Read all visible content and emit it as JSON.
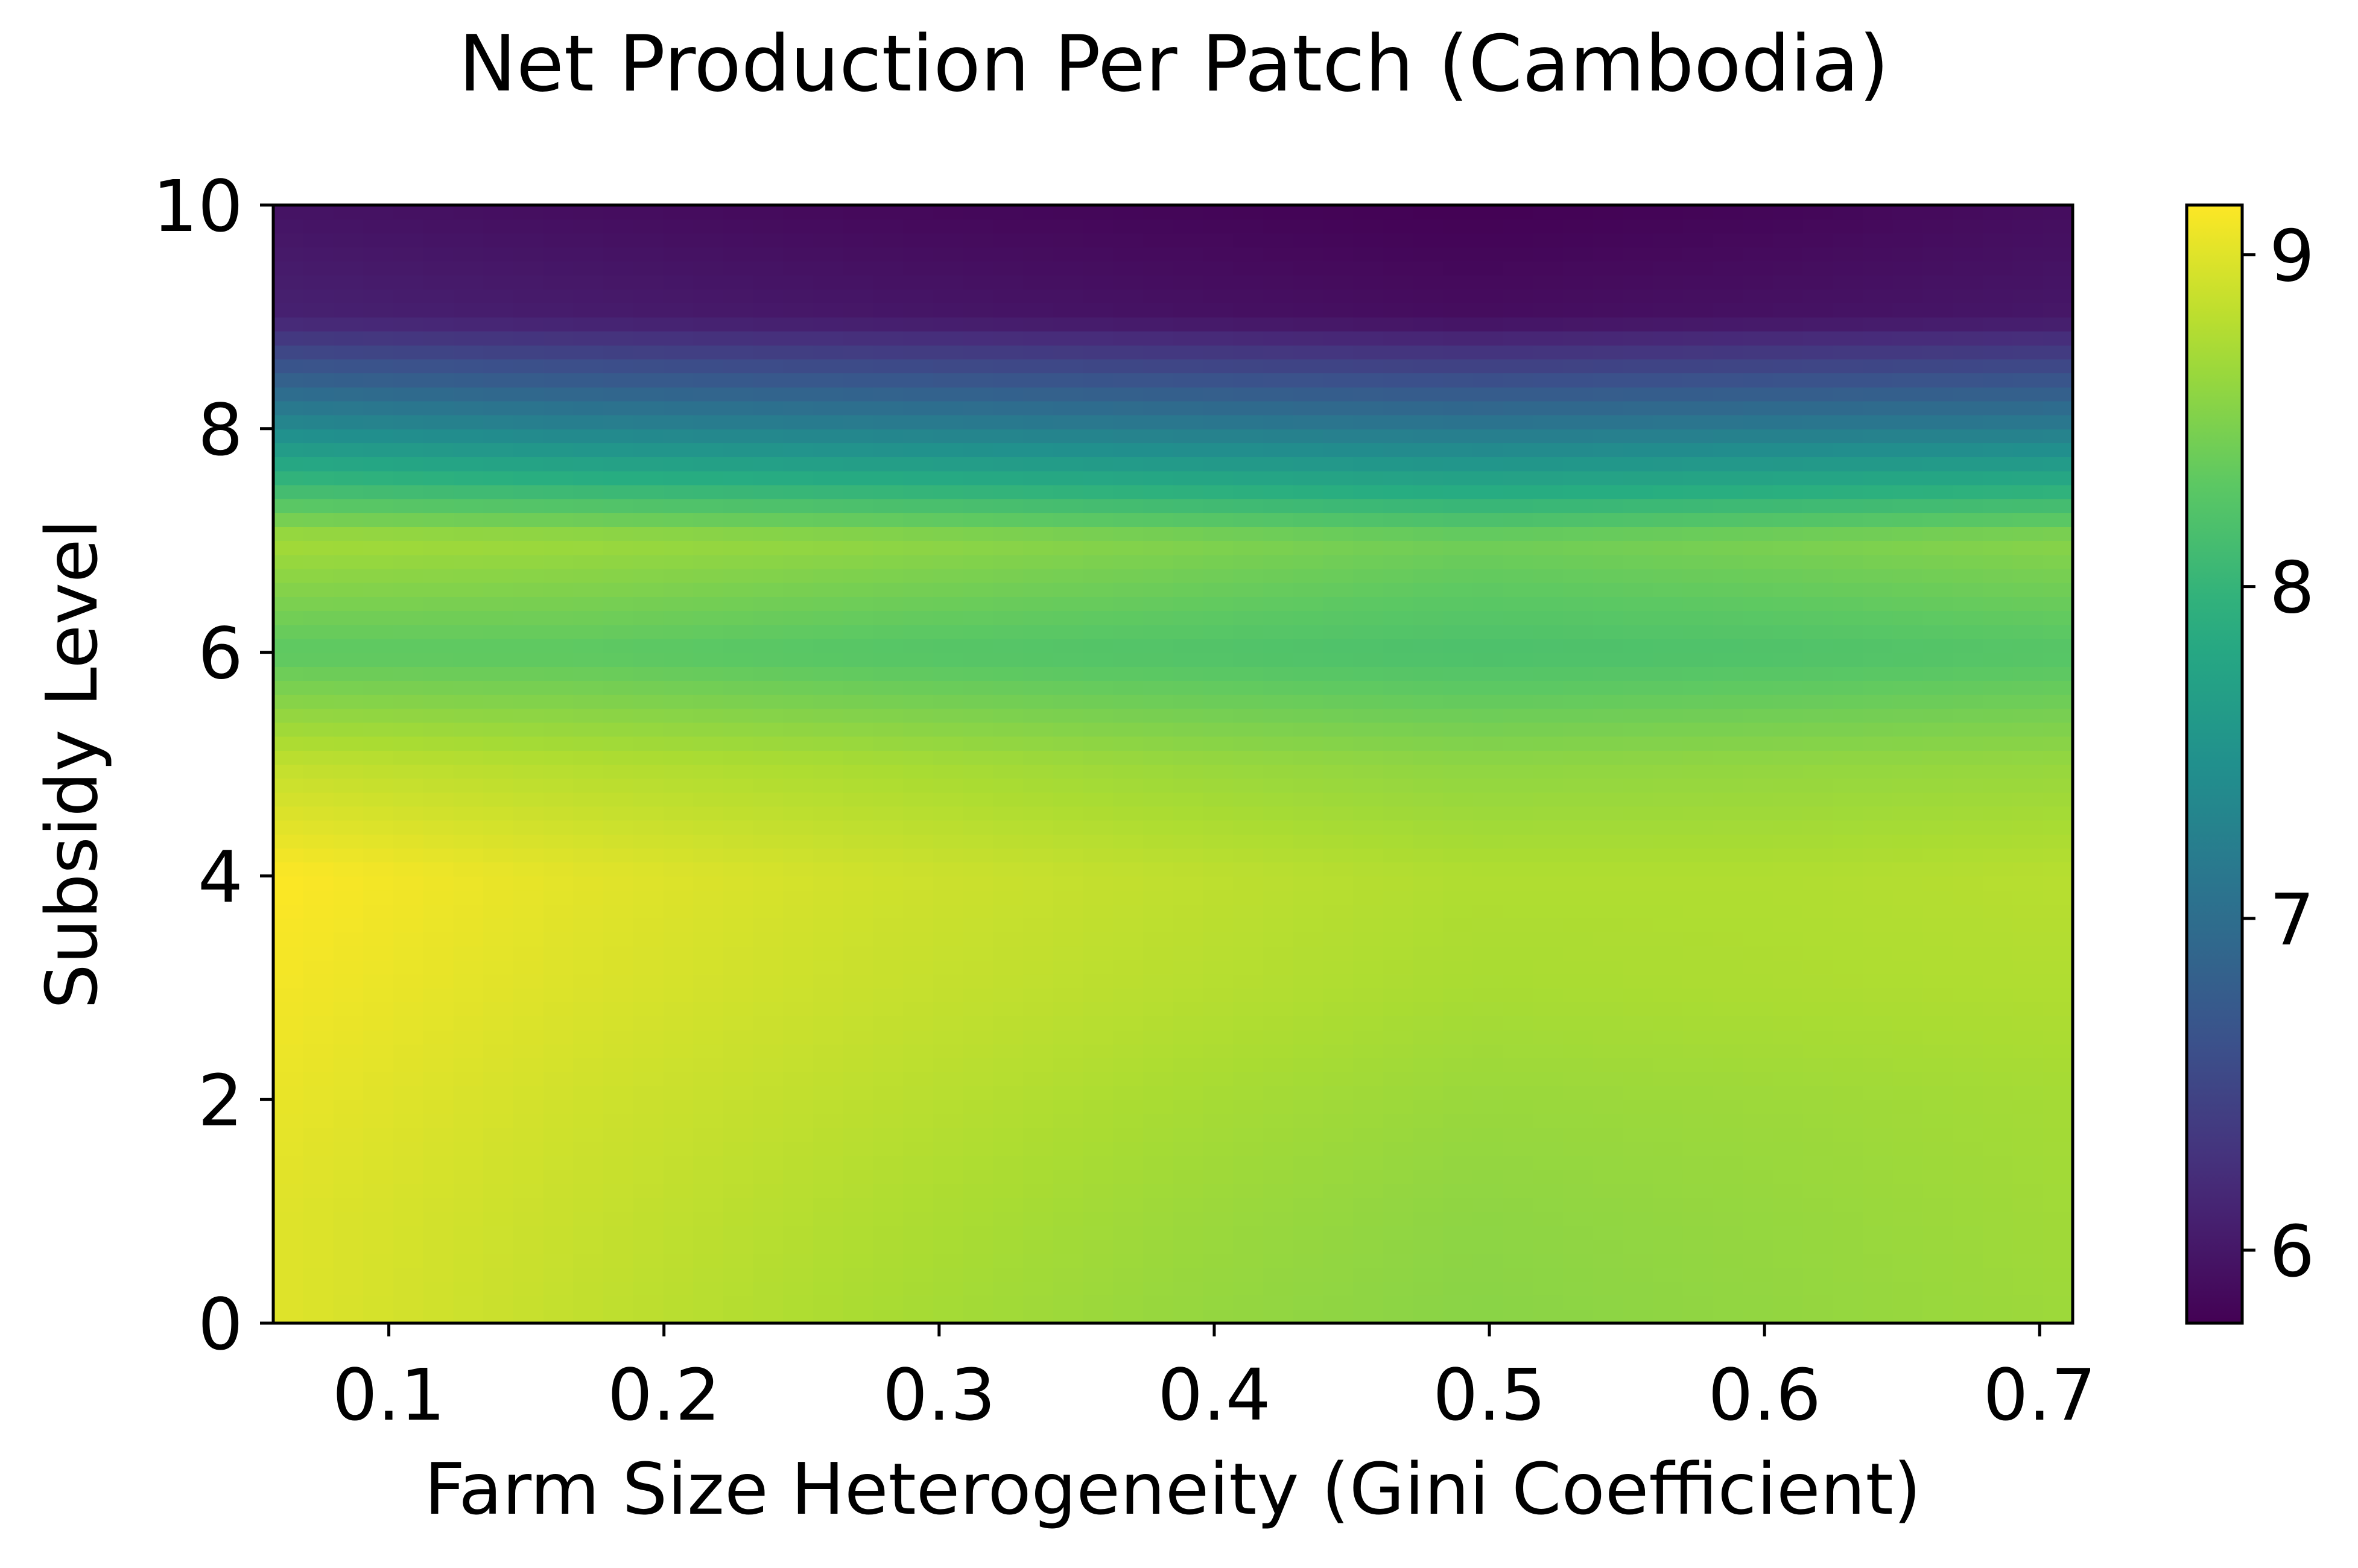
{
  "chart_data": {
    "type": "heatmap",
    "title": "Net Production Per Patch (Cambodia)",
    "xlabel": "Farm Size Heterogeneity (Gini Coefficient)",
    "ylabel": "Subsidy Level",
    "xlim": [
      0.058,
      0.712
    ],
    "ylim": [
      0,
      10
    ],
    "x_ticks": [
      {
        "value": 0.1,
        "label": "0.1"
      },
      {
        "value": 0.2,
        "label": "0.2"
      },
      {
        "value": 0.3,
        "label": "0.3"
      },
      {
        "value": 0.4,
        "label": "0.4"
      },
      {
        "value": 0.5,
        "label": "0.5"
      },
      {
        "value": 0.6,
        "label": "0.6"
      },
      {
        "value": 0.7,
        "label": "0.7"
      }
    ],
    "y_ticks": [
      {
        "value": 0,
        "label": "0"
      },
      {
        "value": 2,
        "label": "2"
      },
      {
        "value": 4,
        "label": "4"
      },
      {
        "value": 6,
        "label": "6"
      },
      {
        "value": 8,
        "label": "8"
      },
      {
        "value": 10,
        "label": "10"
      }
    ],
    "colorbar": {
      "colormap": "viridis",
      "range": [
        5.78,
        9.15
      ],
      "ticks": [
        {
          "value": 6,
          "label": "6"
        },
        {
          "value": 7,
          "label": "7"
        },
        {
          "value": 8,
          "label": "8"
        },
        {
          "value": 9,
          "label": "9"
        }
      ]
    },
    "x": [
      0.058,
      0.167,
      0.276,
      0.385,
      0.494,
      0.603,
      0.712
    ],
    "y": [
      0,
      1,
      2,
      3,
      4,
      5,
      6,
      7,
      8,
      9,
      10
    ],
    "values": [
      [
        9.0,
        8.85,
        8.72,
        8.62,
        8.55,
        8.6,
        8.66
      ],
      [
        9.0,
        8.88,
        8.76,
        8.66,
        8.58,
        8.62,
        8.68
      ],
      [
        9.05,
        8.92,
        8.82,
        8.72,
        8.64,
        8.66,
        8.7
      ],
      [
        9.1,
        8.98,
        8.88,
        8.8,
        8.72,
        8.74,
        8.76
      ],
      [
        9.15,
        9.02,
        8.92,
        8.84,
        8.76,
        8.76,
        8.8
      ],
      [
        8.85,
        8.78,
        8.72,
        8.64,
        8.58,
        8.6,
        8.62
      ],
      [
        8.3,
        8.3,
        8.25,
        8.22,
        8.18,
        8.2,
        8.25
      ],
      [
        8.7,
        8.66,
        8.6,
        8.52,
        8.42,
        8.48,
        8.55
      ],
      [
        7.4,
        7.3,
        7.25,
        7.2,
        7.15,
        7.18,
        7.2
      ],
      [
        6.1,
        6.05,
        6.0,
        5.95,
        5.9,
        5.95,
        6.0
      ],
      [
        5.95,
        5.9,
        5.85,
        5.82,
        5.78,
        5.82,
        5.9
      ]
    ]
  }
}
